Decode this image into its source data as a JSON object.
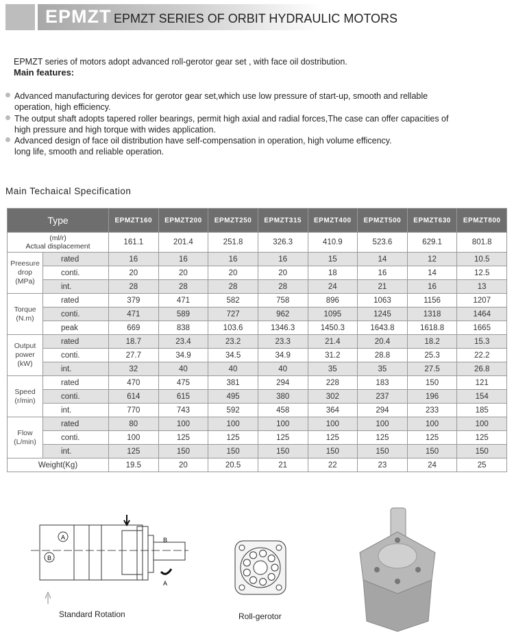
{
  "header": {
    "logo": "EPMZT",
    "title": "EPMZT SERIES OF ORBIT HYDRAULIC MOTORS"
  },
  "intro": "EPMZT series of motors adopt advanced roll-gerotor gear set , with face oil dostribution.",
  "features_heading": "Main features:",
  "features": [
    [
      "Advanced manufacturing devices for gerotor gear set,which use low pressure of start-up, smooth and rellable",
      "operation, high efficiency."
    ],
    [
      "The output shaft adopts tapered roller bearings, permit high axial and radial forces,The case can offer capacities of",
      "high pressure and  high torque  with wides application."
    ],
    [
      "Advanced design of face oil distribution have self-compensation in operation, high volume efficency.",
      "long life, smooth and reliable operation."
    ]
  ],
  "spec_title": "Main Techaical Specification",
  "table": {
    "type_label": "Type",
    "models": [
      "EPMZT160",
      "EPMZT200",
      "EPMZT250",
      "EPMZT315",
      "EPMZT400",
      "EPMZT500",
      "EPMZT630",
      "EPMZT800"
    ],
    "displacement": {
      "unit": "(ml/r)",
      "label": "Actual displacement",
      "values": [
        "161.1",
        "201.4",
        "251.8",
        "326.3",
        "410.9",
        "523.6",
        "629.1",
        "801.8"
      ]
    },
    "groups": [
      {
        "label": [
          "Preesure",
          "drop",
          "(MPa)"
        ],
        "rows": [
          {
            "sub": "rated",
            "values": [
              "16",
              "16",
              "16",
              "16",
              "15",
              "14",
              "12",
              "10.5"
            ],
            "shaded": true
          },
          {
            "sub": "conti.",
            "values": [
              "20",
              "20",
              "20",
              "20",
              "18",
              "16",
              "14",
              "12.5"
            ],
            "shaded": false
          },
          {
            "sub": "int.",
            "values": [
              "28",
              "28",
              "28",
              "28",
              "24",
              "21",
              "16",
              "13"
            ],
            "shaded": true
          }
        ]
      },
      {
        "label": [
          "Torque",
          "(N.m)"
        ],
        "rows": [
          {
            "sub": "rated",
            "values": [
              "379",
              "471",
              "582",
              "758",
              "896",
              "1063",
              "1156",
              "1207"
            ],
            "shaded": false
          },
          {
            "sub": "conti.",
            "values": [
              "471",
              "589",
              "727",
              "962",
              "1095",
              "1245",
              "1318",
              "1464"
            ],
            "shaded": true
          },
          {
            "sub": "peak",
            "values": [
              "669",
              "838",
              "103.6",
              "1346.3",
              "1450.3",
              "1643.8",
              "1618.8",
              "1665"
            ],
            "shaded": false
          }
        ]
      },
      {
        "label": [
          "Output",
          "power",
          "(kW)"
        ],
        "rows": [
          {
            "sub": "rated",
            "values": [
              "18.7",
              "23.4",
              "23.2",
              "23.3",
              "21.4",
              "20.4",
              "18.2",
              "15.3"
            ],
            "shaded": true
          },
          {
            "sub": "conti.",
            "values": [
              "27.7",
              "34.9",
              "34.5",
              "34.9",
              "31.2",
              "28.8",
              "25.3",
              "22.2"
            ],
            "shaded": false
          },
          {
            "sub": "int.",
            "values": [
              "32",
              "40",
              "40",
              "40",
              "35",
              "35",
              "27.5",
              "26.8"
            ],
            "shaded": true
          }
        ]
      },
      {
        "label": [
          "Speed",
          "(r/min)"
        ],
        "rows": [
          {
            "sub": "rated",
            "values": [
              "470",
              "475",
              "381",
              "294",
              "228",
              "183",
              "150",
              "121"
            ],
            "shaded": false
          },
          {
            "sub": "conti.",
            "values": [
              "614",
              "615",
              "495",
              "380",
              "302",
              "237",
              "196",
              "154"
            ],
            "shaded": true
          },
          {
            "sub": "int.",
            "values": [
              "770",
              "743",
              "592",
              "458",
              "364",
              "294",
              "233",
              "185"
            ],
            "shaded": false
          }
        ]
      },
      {
        "label": [
          "Flow",
          "(L/min)"
        ],
        "rows": [
          {
            "sub": "rated",
            "values": [
              "80",
              "100",
              "100",
              "100",
              "100",
              "100",
              "100",
              "100"
            ],
            "shaded": true
          },
          {
            "sub": "conti.",
            "values": [
              "100",
              "125",
              "125",
              "125",
              "125",
              "125",
              "125",
              "125"
            ],
            "shaded": false
          },
          {
            "sub": "int.",
            "values": [
              "125",
              "150",
              "150",
              "150",
              "150",
              "150",
              "150",
              "150"
            ],
            "shaded": true
          }
        ]
      }
    ],
    "weight": {
      "label": "Weight(Kg)",
      "values": [
        "19.5",
        "20",
        "20.5",
        "21",
        "22",
        "23",
        "24",
        "25"
      ]
    }
  },
  "figures": {
    "rotation_caption": "Standard Rotation",
    "gerotor_caption": "Roll-gerotor",
    "rotation_labels": {
      "a": "A",
      "b": "B"
    }
  }
}
